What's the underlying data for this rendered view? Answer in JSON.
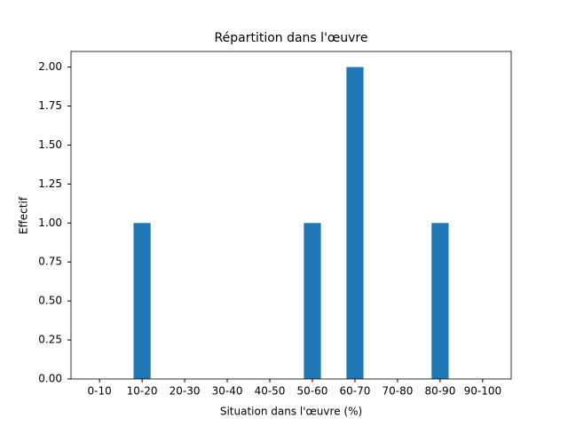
{
  "chart_data": {
    "type": "bar",
    "title": "Répartition dans l'œuvre",
    "x_label": "Situation dans l'œuvre (%)",
    "y_label": "Effectif",
    "categories": [
      "0-10",
      "10-20",
      "20-30",
      "30-40",
      "40-50",
      "50-60",
      "60-70",
      "70-80",
      "80-90",
      "90-100"
    ],
    "values": [
      0,
      1,
      0,
      0,
      0,
      1,
      2,
      0,
      1,
      0
    ],
    "color": "#1f77b4",
    "ylim": [
      0,
      2.1
    ],
    "yticks": [
      {
        "value": 0,
        "label": "0.00"
      },
      {
        "value": 0.25,
        "label": "0.25"
      },
      {
        "value": 0.5,
        "label": "0.50"
      },
      {
        "value": 0.75,
        "label": "0.75"
      },
      {
        "value": 1,
        "label": "1.00"
      },
      {
        "value": 1.25,
        "label": "1.25"
      },
      {
        "value": 1.5,
        "label": "1.50"
      },
      {
        "value": 1.75,
        "label": "1.75"
      },
      {
        "value": 2,
        "label": "2.00"
      }
    ],
    "grid": false
  }
}
